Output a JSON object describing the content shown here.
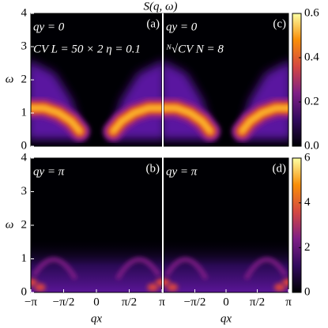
{
  "chart_data": [
    {
      "type": "heatmap",
      "title": "S(q, ω)",
      "ylabel": "ω",
      "annotation": "qy = 0",
      "tag": "(a)",
      "note": "CV  L = 50 × 2   η = 0.1",
      "xlim": [
        -3.14159,
        3.14159
      ],
      "ylim": [
        0,
        4
      ],
      "yticks": [
        0,
        1,
        2,
        3,
        4
      ]
    },
    {
      "type": "heatmap",
      "ylabel": "ω",
      "xlabel": "qx",
      "annotation": "qy = π",
      "tag": "(b)",
      "xlim": [
        -3.14159,
        3.14159
      ],
      "ylim": [
        0,
        4
      ],
      "yticks": [
        0,
        1,
        2,
        3,
        4
      ],
      "xticks": [
        {
          "value": -3.14159,
          "label": "−π"
        },
        {
          "value": -1.5708,
          "label": "−π/2"
        },
        0,
        {
          "value": 1.5708,
          "label": "π/2"
        },
        {
          "value": 3.14159,
          "label": "π"
        }
      ]
    },
    {
      "type": "heatmap",
      "annotation": "qy = 0",
      "tag": "(c)",
      "note": "ᴺ√CV  N = 8",
      "xlim": [
        -3.14159,
        3.14159
      ],
      "ylim": [
        0,
        4
      ],
      "zlim": [
        0,
        0.6
      ],
      "zticks": [
        {
          "value": 0,
          "label": "0.0"
        },
        0.2,
        0.4,
        0.6
      ]
    },
    {
      "type": "heatmap",
      "xlabel": "qx",
      "annotation": "qy = π",
      "tag": "(d)",
      "xlim": [
        -3.14159,
        3.14159
      ],
      "ylim": [
        0,
        4
      ],
      "xticks": [
        {
          "value": -1.5708,
          "label": "−π/2"
        },
        0,
        {
          "value": 1.5708,
          "label": "π/2"
        },
        {
          "value": 3.14159,
          "label": "π"
        }
      ],
      "zlim": [
        0,
        6
      ],
      "zticks": [
        0,
        2,
        4,
        6
      ]
    }
  ]
}
